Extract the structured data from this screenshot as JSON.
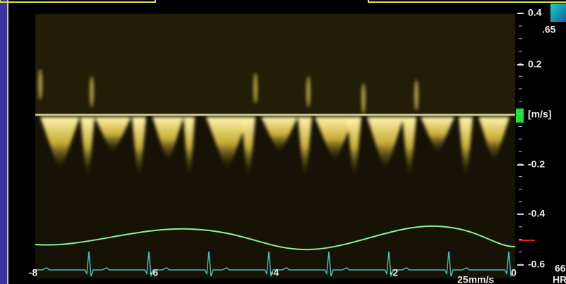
{
  "velocity_axis": {
    "ticks": [
      "0.4",
      "0.2",
      "-0.2",
      "-0.4",
      "-0.6"
    ],
    "unit": "[m/s]",
    "scale_max": ".65"
  },
  "time_axis": {
    "ticks": [
      "-8",
      "-6",
      "-4",
      "-2",
      "0"
    ]
  },
  "sweep_speed": "25mm/s",
  "heart_rate": {
    "value": "66",
    "label": "HR"
  }
}
